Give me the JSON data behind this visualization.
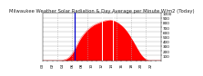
{
  "title": "Milwaukee Weather Solar Radiation & Day Average per Minute W/m2 (Today)",
  "bg_color": "#ffffff",
  "plot_bg_color": "#ffffff",
  "grid_color": "#aaaaaa",
  "fill_color": "#ff0000",
  "line_color": "#cc0000",
  "ylim": [
    0,
    1000
  ],
  "xlim": [
    0,
    1440
  ],
  "ytick_values": [
    100,
    200,
    300,
    400,
    500,
    600,
    700,
    800,
    900,
    1000
  ],
  "dashed_vlines_x": [
    180,
    360,
    540,
    720,
    900,
    1080,
    1260
  ],
  "solar_curve_x": [
    0,
    60,
    120,
    180,
    240,
    280,
    300,
    320,
    340,
    360,
    380,
    400,
    420,
    440,
    460,
    480,
    500,
    520,
    540,
    560,
    580,
    600,
    620,
    640,
    660,
    680,
    700,
    720,
    740,
    760,
    780,
    800,
    820,
    840,
    860,
    880,
    900,
    920,
    940,
    960,
    980,
    1000,
    1020,
    1040,
    1060,
    1080,
    1100,
    1120,
    1140,
    1160,
    1180,
    1200,
    1220,
    1240,
    1260,
    1280,
    1300,
    1320,
    1360,
    1400,
    1440
  ],
  "solar_curve_y": [
    0,
    0,
    0,
    0,
    5,
    20,
    40,
    65,
    100,
    145,
    200,
    265,
    330,
    400,
    460,
    510,
    555,
    595,
    635,
    665,
    695,
    720,
    745,
    762,
    778,
    790,
    805,
    820,
    830,
    838,
    845,
    850,
    855,
    850,
    840,
    828,
    810,
    790,
    765,
    738,
    705,
    668,
    625,
    578,
    525,
    468,
    410,
    350,
    288,
    228,
    170,
    118,
    78,
    45,
    20,
    8,
    2,
    0,
    0,
    0,
    0
  ],
  "current_time_min": 388,
  "white_line_x1": 720,
  "white_line_x2": 855,
  "title_fontsize": 3.8,
  "tick_fontsize": 3.0
}
